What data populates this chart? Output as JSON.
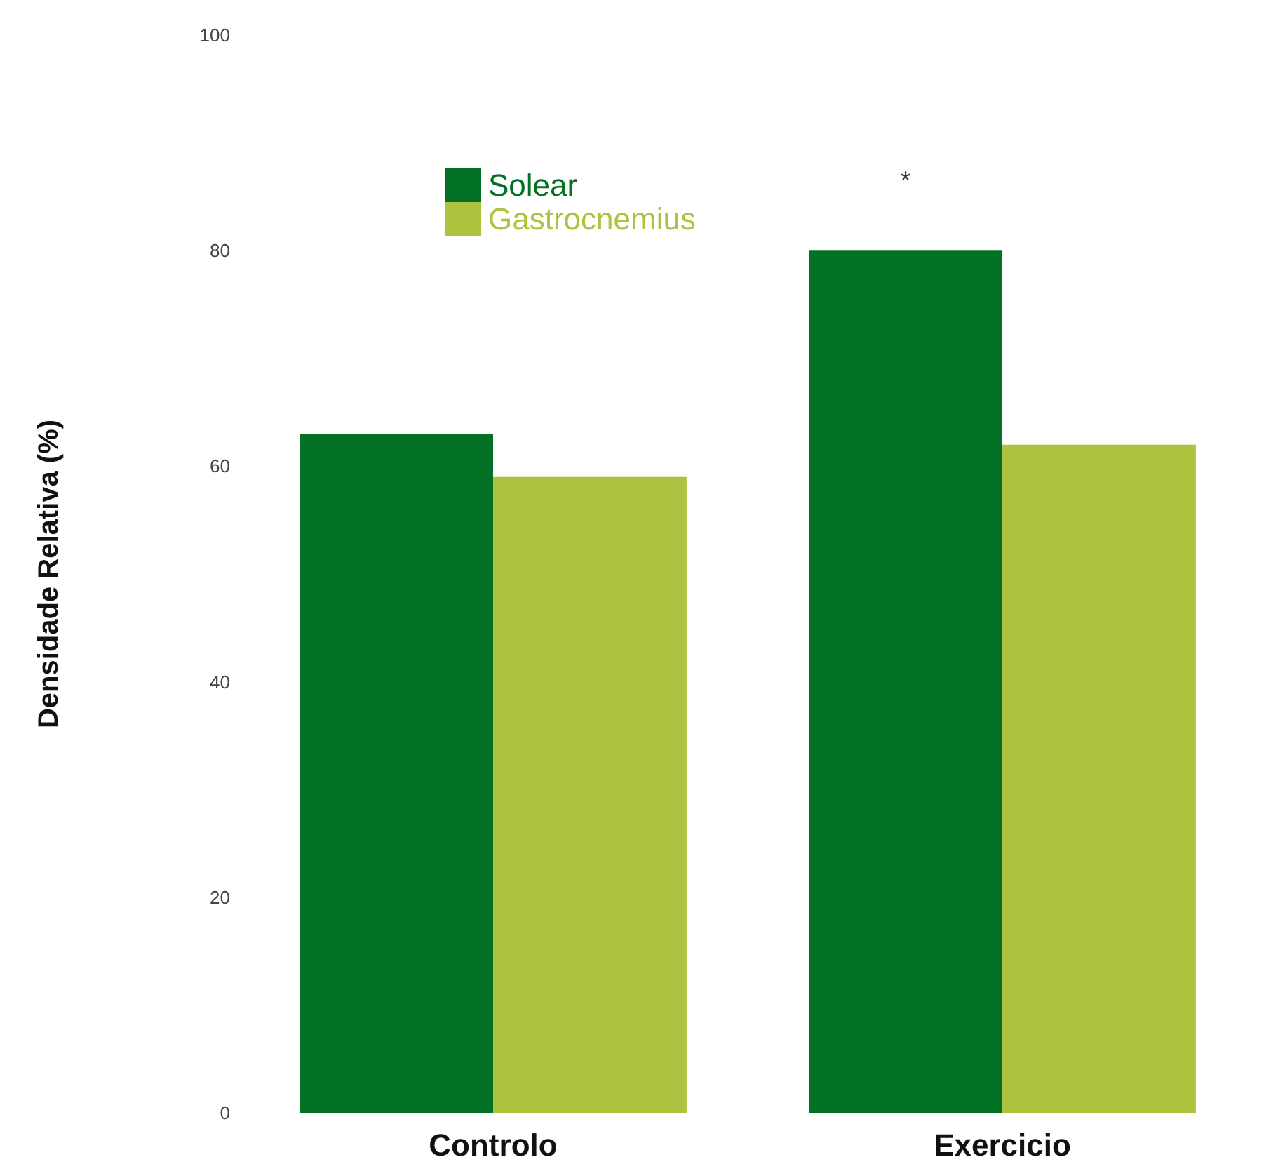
{
  "chart_data": {
    "type": "bar",
    "ylabel": "Densidade Relativa (%)",
    "categories": [
      "Controlo",
      "Exercicio"
    ],
    "series": [
      {
        "name": "Solear",
        "color": "#037124",
        "values": [
          63,
          80
        ]
      },
      {
        "name": "Gastrocnemius",
        "color": "#abc33e",
        "values": [
          59,
          62
        ]
      }
    ],
    "ylim": [
      0,
      100
    ],
    "yticks": [
      0,
      20,
      40,
      60,
      80,
      100
    ],
    "grid": false,
    "legend": "top left",
    "annotations": [
      "*"
    ]
  }
}
